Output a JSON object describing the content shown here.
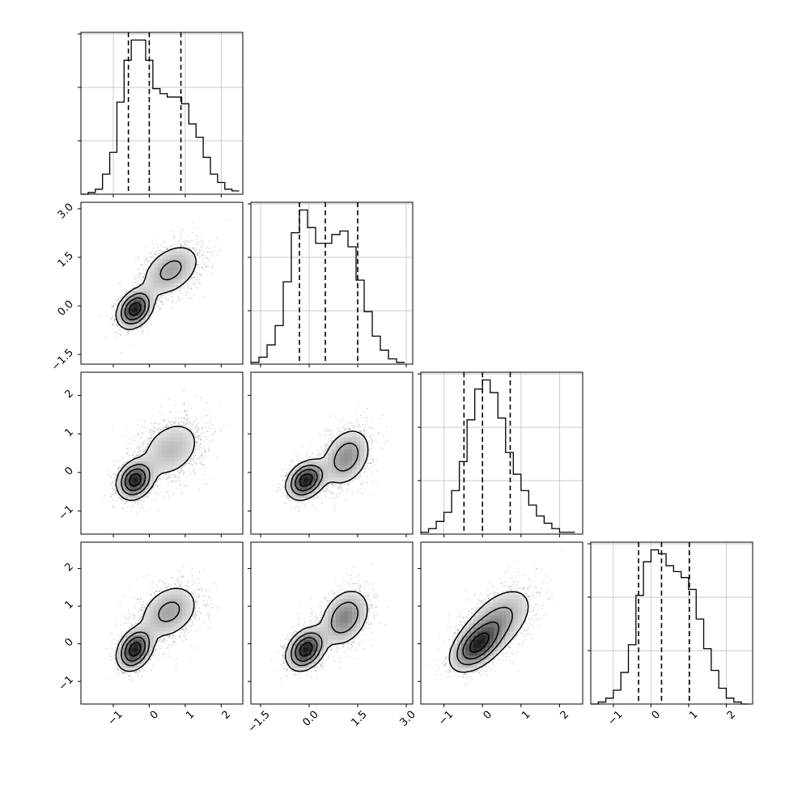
{
  "chart_data": {
    "type": "corner",
    "variables": 4,
    "grid": true,
    "quantiles": [
      0.16,
      0.5,
      0.84
    ],
    "contour_levels": 4,
    "colors": {
      "ink": "#000000",
      "grid": "#c8c8c8",
      "points": "#777777",
      "histogram_fill": "#000000"
    },
    "axes": [
      {
        "range": [
          -1.9,
          2.6
        ],
        "ticks": [
          -1,
          0,
          1,
          2
        ],
        "tick_labels": [
          "−1",
          "0",
          "1",
          "2"
        ]
      },
      {
        "range": [
          -1.8,
          3.2
        ],
        "ticks": [
          -1.5,
          0.0,
          1.5,
          3.0
        ],
        "tick_labels": [
          "−1.5",
          "0.0",
          "1.5",
          "3.0"
        ]
      },
      {
        "range": [
          -1.6,
          2.6
        ],
        "ticks": [
          -1,
          0,
          1,
          2
        ],
        "tick_labels": [
          "−1",
          "0",
          "1",
          "2"
        ]
      },
      {
        "range": [
          -1.6,
          2.7
        ],
        "ticks": [
          -1,
          0,
          1,
          2
        ],
        "tick_labels": [
          "−1",
          "0",
          "1",
          "2"
        ]
      }
    ],
    "marginal_histograms": [
      {
        "bin_edges": [
          -1.9,
          -1.7,
          -1.5,
          -1.3,
          -1.1,
          -0.9,
          -0.7,
          -0.5,
          -0.3,
          -0.1,
          0.1,
          0.3,
          0.5,
          0.7,
          0.9,
          1.1,
          1.3,
          1.5,
          1.7,
          1.9,
          2.1,
          2.3,
          2.5
        ],
        "counts": [
          0,
          1,
          3,
          12,
          25,
          55,
          80,
          92,
          92,
          80,
          63,
          60,
          58,
          58,
          54,
          42,
          34,
          22,
          12,
          7,
          3,
          2
        ],
        "quantile_lines": [
          -0.58,
          0.0,
          0.88
        ]
      },
      {
        "bin_edges": [
          -1.8,
          -1.55,
          -1.3,
          -1.05,
          -0.8,
          -0.55,
          -0.3,
          -0.05,
          0.2,
          0.45,
          0.7,
          0.95,
          1.2,
          1.45,
          1.7,
          1.95,
          2.2,
          2.45,
          2.7,
          2.95
        ],
        "counts": [
          1,
          4,
          11,
          22,
          47,
          75,
          88,
          78,
          69,
          69,
          74,
          76,
          67,
          48,
          30,
          16,
          8,
          3,
          1
        ],
        "quantile_lines": [
          -0.3,
          0.5,
          1.5
        ]
      },
      {
        "bin_edges": [
          -1.6,
          -1.4,
          -1.2,
          -1.0,
          -0.8,
          -0.6,
          -0.4,
          -0.2,
          0.0,
          0.2,
          0.4,
          0.6,
          0.8,
          1.0,
          1.2,
          1.4,
          1.6,
          1.8,
          2.0,
          2.2,
          2.4
        ],
        "counts": [
          1,
          3,
          7,
          12,
          24,
          40,
          63,
          80,
          85,
          78,
          64,
          45,
          33,
          24,
          16,
          10,
          6,
          3,
          1,
          1
        ],
        "quantile_lines": [
          -0.48,
          0.0,
          0.72
        ]
      },
      {
        "bin_edges": [
          -1.6,
          -1.4,
          -1.2,
          -1.0,
          -0.8,
          -0.6,
          -0.4,
          -0.2,
          0.0,
          0.2,
          0.4,
          0.6,
          0.8,
          1.0,
          1.2,
          1.4,
          1.6,
          1.8,
          2.0,
          2.2,
          2.4,
          2.6
        ],
        "counts": [
          0,
          1,
          3,
          7,
          16,
          30,
          55,
          72,
          78,
          76,
          70,
          67,
          64,
          58,
          43,
          28,
          17,
          8,
          3,
          1,
          0
        ],
        "quantile_lines": [
          -0.33,
          0.28,
          1.02
        ]
      }
    ],
    "joint_distributions": [
      {
        "x_var": 0,
        "y_var": 1,
        "component_1": {
          "mean": [
            -0.4,
            -0.1
          ],
          "sd": [
            0.25,
            0.3
          ],
          "rho": 0.3
        },
        "component_2": {
          "mean": [
            0.6,
            1.1
          ],
          "sd": [
            0.45,
            0.45
          ],
          "rho": 0.4
        }
      },
      {
        "x_var": 0,
        "y_var": 2,
        "component_1": {
          "mean": [
            -0.4,
            -0.2
          ],
          "sd": [
            0.25,
            0.25
          ],
          "rho": 0.2
        },
        "component_2": {
          "mean": [
            0.6,
            0.6
          ],
          "sd": [
            0.5,
            0.45
          ],
          "rho": 0.3
        }
      },
      {
        "x_var": 1,
        "y_var": 2,
        "component_1": {
          "mean": [
            -0.1,
            -0.2
          ],
          "sd": [
            0.3,
            0.25
          ],
          "rho": 0.3
        },
        "component_2": {
          "mean": [
            1.15,
            0.4
          ],
          "sd": [
            0.4,
            0.4
          ],
          "rho": 0.3
        }
      },
      {
        "x_var": 0,
        "y_var": 3,
        "component_1": {
          "mean": [
            -0.4,
            -0.15
          ],
          "sd": [
            0.25,
            0.28
          ],
          "rho": 0.3
        },
        "component_2": {
          "mean": [
            0.55,
            0.85
          ],
          "sd": [
            0.45,
            0.4
          ],
          "rho": 0.3
        }
      },
      {
        "x_var": 1,
        "y_var": 3,
        "component_1": {
          "mean": [
            -0.1,
            -0.15
          ],
          "sd": [
            0.3,
            0.28
          ],
          "rho": 0.3
        },
        "component_2": {
          "mean": [
            1.1,
            0.7
          ],
          "sd": [
            0.4,
            0.4
          ],
          "rho": 0.3
        }
      },
      {
        "x_var": 2,
        "y_var": 3,
        "component_1": {
          "mean": [
            -0.15,
            -0.05
          ],
          "sd": [
            0.35,
            0.35
          ],
          "rho": 0.5
        },
        "component_2": {
          "mean": [
            0.4,
            0.6
          ],
          "sd": [
            0.5,
            0.5
          ],
          "rho": 0.5
        }
      }
    ]
  }
}
